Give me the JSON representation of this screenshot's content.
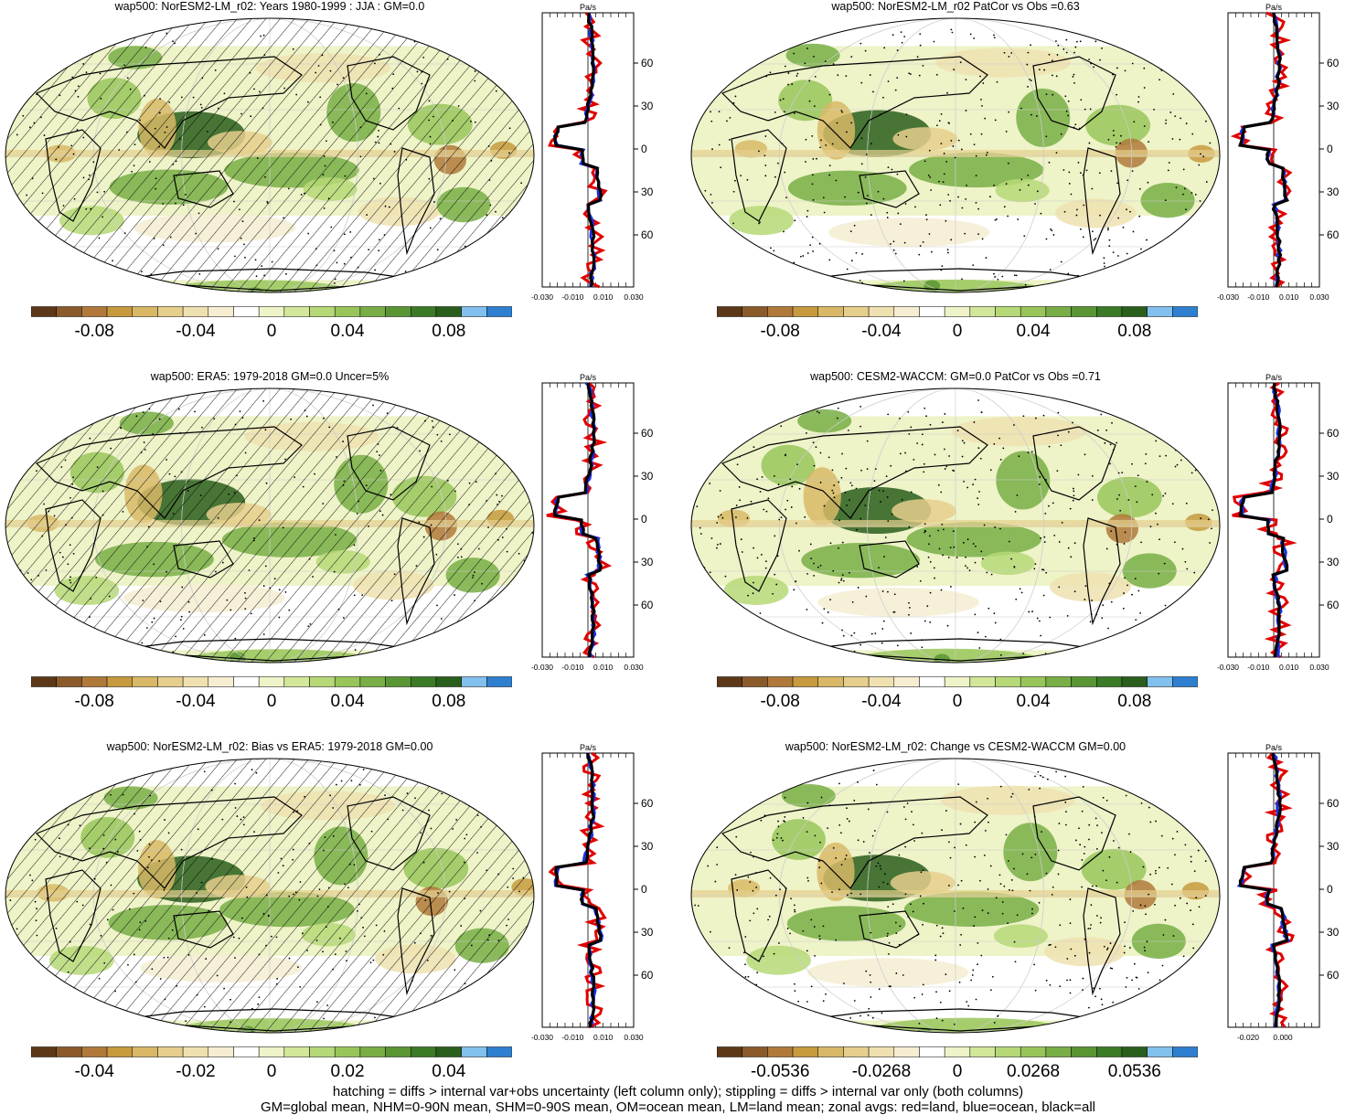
{
  "colors": {
    "palette": [
      "#5c3818",
      "#8a5a2a",
      "#b0793a",
      "#c79a3e",
      "#d8b866",
      "#e6cf8c",
      "#efe0b0",
      "#f6edd2",
      "#ffffff",
      "#eef3c8",
      "#d2e79a",
      "#b6d877",
      "#98c55a",
      "#78ae45",
      "#5a9534",
      "#3b7a26",
      "#2a5e1c",
      "#82c0ee",
      "#2e7fcf"
    ],
    "land": "#e00000",
    "ocean": "#1a2fe0",
    "all": "#000000"
  },
  "panels": [
    {
      "id": "p1",
      "title": "wap500: NorESM2-LM_r02: Years 1980-1999 : JJA : GM=0.0",
      "colorbar_labels": [
        "-0.08",
        "-0.04",
        "0",
        "0.04",
        "0.08"
      ],
      "unit": "Pa/s",
      "lat_labels": [
        "60N",
        "30N",
        "0",
        "30S",
        "60S"
      ],
      "x_tick_labels": [
        "-0.030",
        "-0.010",
        "0.010",
        "0.030"
      ],
      "hatching": true,
      "stippling": "sparse"
    },
    {
      "id": "p2",
      "title": "wap500: NorESM2-LM_r02 PatCor vs Obs =0.63",
      "colorbar_labels": [
        "-0.08",
        "-0.04",
        "0",
        "0.04",
        "0.08"
      ],
      "unit": "Pa/s",
      "lat_labels": [
        "60N",
        "30N",
        "0",
        "30S",
        "60S"
      ],
      "x_tick_labels": [
        "-0.030",
        "-0.010",
        "0.010",
        "0.030"
      ],
      "hatching": false,
      "stippling": "dense"
    },
    {
      "id": "p3",
      "title": "wap500: ERA5: 1979-2018 GM=0.0 Uncer=5%",
      "colorbar_labels": [
        "-0.08",
        "-0.04",
        "0",
        "0.04",
        "0.08"
      ],
      "unit": "Pa/s",
      "lat_labels": [
        "60N",
        "30N",
        "0",
        "30S",
        "60S"
      ],
      "x_tick_labels": [
        "-0.030",
        "-0.010",
        "0.010",
        "0.030"
      ],
      "hatching": true,
      "stippling": "sparse"
    },
    {
      "id": "p4",
      "title": "wap500: CESM2-WACCM: GM=0.0 PatCor vs Obs =0.71",
      "colorbar_labels": [
        "-0.08",
        "-0.04",
        "0",
        "0.04",
        "0.08"
      ],
      "unit": "Pa/s",
      "lat_labels": [
        "60N",
        "30N",
        "0",
        "30S",
        "60S"
      ],
      "x_tick_labels": [
        "-0.030",
        "-0.010",
        "0.010",
        "0.030"
      ],
      "hatching": false,
      "stippling": "dense"
    },
    {
      "id": "p5",
      "title": "wap500: NorESM2-LM_r02: Bias vs ERA5: 1979-2018 GM=0.00",
      "colorbar_labels": [
        "-0.04",
        "-0.02",
        "0",
        "0.02",
        "0.04"
      ],
      "unit": "Pa/s",
      "lat_labels": [
        "60N",
        "30N",
        "0",
        "30S",
        "60S"
      ],
      "x_tick_labels": [
        "-0.030",
        "-0.010",
        "0.010",
        "0.030"
      ],
      "hatching": true,
      "stippling": "sparse"
    },
    {
      "id": "p6",
      "title": "wap500: NorESM2-LM_r02: Change vs CESM2-WACCM GM=0.00",
      "colorbar_labels": [
        "-0.0536",
        "-0.0268",
        "0",
        "0.0268",
        "0.0536"
      ],
      "unit": "Pa/s",
      "lat_labels": [
        "60N",
        "30N",
        "0",
        "30S",
        "60S"
      ],
      "x_tick_labels": [
        "-0.020",
        "0.000"
      ],
      "hatching": false,
      "stippling": "dense"
    }
  ],
  "footer": {
    "line1": "hatching = diffs > internal var+obs uncertainty (left column only); stippling = diffs > internal var only (both columns)",
    "line2": "GM=global mean, NHM=0-90N mean, SHM=0-90S mean, OM=ocean mean, LM=land mean; zonal avgs: red=land, blue=ocean, black=all"
  }
}
